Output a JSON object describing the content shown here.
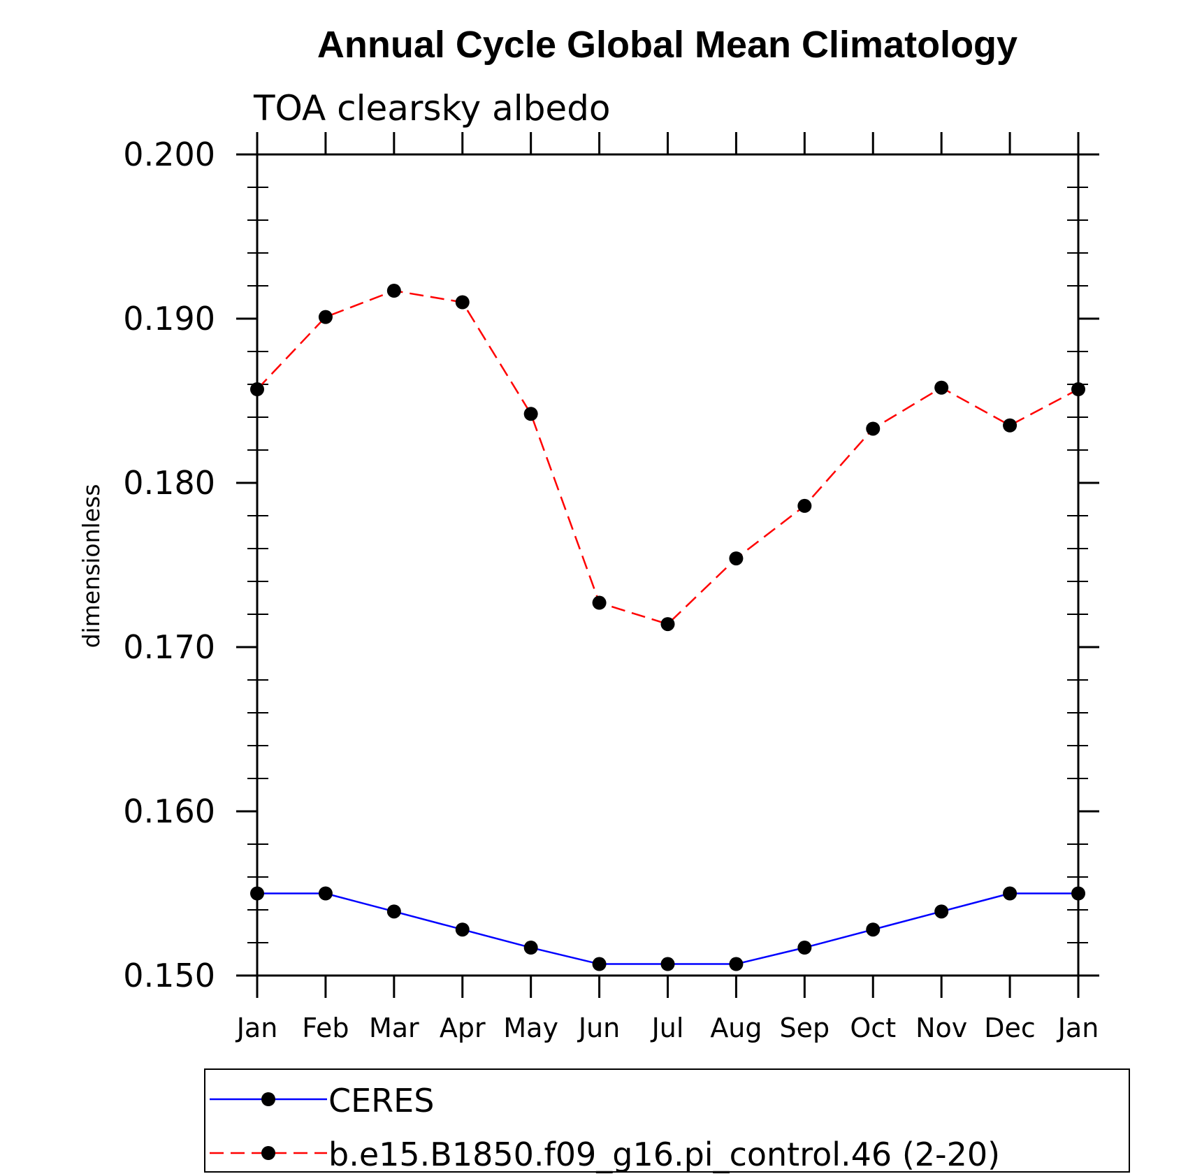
{
  "chart_data": {
    "type": "line",
    "title": "Annual Cycle Global Mean Climatology",
    "subtitle": "TOA clearsky albedo",
    "xlabel": "",
    "ylabel": "dimensionless",
    "categories": [
      "Jan",
      "Feb",
      "Mar",
      "Apr",
      "May",
      "Jun",
      "Jul",
      "Aug",
      "Sep",
      "Oct",
      "Nov",
      "Dec",
      "Jan"
    ],
    "ylim": [
      0.15,
      0.2
    ],
    "yticks": [
      "0.150",
      "0.160",
      "0.170",
      "0.180",
      "0.190",
      "0.200"
    ],
    "grid": false,
    "legend_position": "bottom",
    "series": [
      {
        "name": "CERES",
        "color": "#0000ff",
        "line_style": "solid",
        "marker": "filled-circle",
        "values": [
          0.155,
          0.155,
          0.1539,
          0.1528,
          0.1517,
          0.1507,
          0.1507,
          0.1507,
          0.1517,
          0.1528,
          0.1539,
          0.155,
          0.155
        ]
      },
      {
        "name": "b.e15.B1850.f09_g16.pi_control.46 (2-20)",
        "color": "#ff0000",
        "line_style": "dashed",
        "marker": "filled-circle",
        "values": [
          0.1857,
          0.1901,
          0.1917,
          0.191,
          0.1842,
          0.1727,
          0.1714,
          0.1754,
          0.1786,
          0.1833,
          0.1858,
          0.1835,
          0.1857
        ]
      }
    ]
  }
}
